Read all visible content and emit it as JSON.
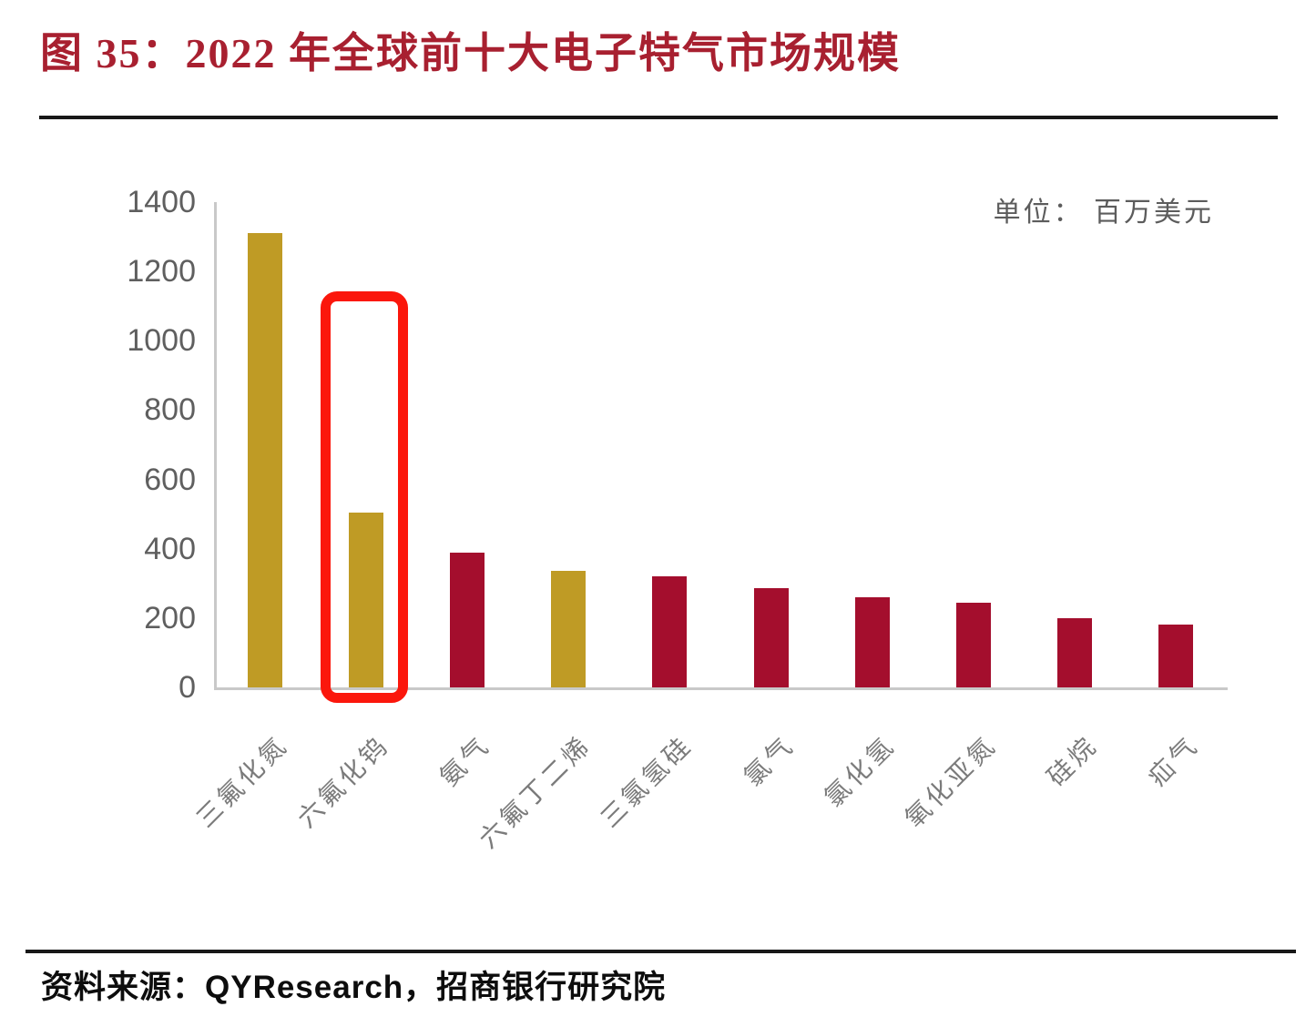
{
  "title": "图 35：2022 年全球前十大电子特气市场规模",
  "unit_label": "单位： 百万美元",
  "source": "资料来源：QYResearch，招商银行研究院",
  "colors": {
    "title_red": "#a82030",
    "gold_bar": "#bf9b25",
    "red_bar": "#a40e2d",
    "highlight_box": "#fb170c",
    "axis_line": "#c9c9c9",
    "tick_text": "#5f5f5f",
    "category_text": "#7b7b7b"
  },
  "chart_data": {
    "type": "bar",
    "title": "2022 年全球前十大电子特气市场规模",
    "unit": "百万美元",
    "categories": [
      "三氟化氮",
      "六氟化钨",
      "氨气",
      "六氟丁二烯",
      "三氯氢硅",
      "氯气",
      "氯化氢",
      "氧化亚氮",
      "硅烷",
      "疝气"
    ],
    "values": [
      1310,
      505,
      390,
      335,
      320,
      285,
      260,
      245,
      200,
      180
    ],
    "bar_colors": [
      "#bf9b25",
      "#bf9b25",
      "#a40e2d",
      "#bf9b25",
      "#a40e2d",
      "#a40e2d",
      "#a40e2d",
      "#a40e2d",
      "#a40e2d",
      "#a40e2d"
    ],
    "ylim": [
      0,
      1400
    ],
    "yticks": [
      1400,
      1200,
      1000,
      800,
      600,
      400,
      200,
      0
    ],
    "xlabel": "",
    "ylabel": "",
    "grid": false,
    "legend": false,
    "highlight": {
      "index": 1,
      "category": "六氟化钨"
    }
  }
}
